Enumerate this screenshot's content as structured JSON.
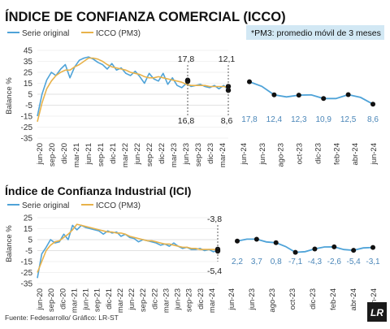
{
  "colors": {
    "series_original": "#4fa3d8",
    "series_pm3": "#e8b24a",
    "note_bg": "#d2e8f4",
    "text": "#222222",
    "value_text": "#4a86b8",
    "grid": "#d9d9d9"
  },
  "footer": {
    "source": "Fuente: Fedesarrollo/ Gráfico: LR-ST",
    "logo_text": "LR"
  },
  "chart_data": [
    {
      "type": "line",
      "title": "ÍNDICE DE CONFIANZA COMERCIAL (ICCO)",
      "note": "*PM3: promedio móvil de 3 meses",
      "ylabel": "Balance %",
      "legend": [
        "Serie original",
        "ICCO (PM3)"
      ],
      "legend_position": "top-left",
      "ylim": [
        -25,
        45
      ],
      "y_ticks": [
        "45",
        "35",
        "25",
        "15",
        "5",
        "-5",
        "-15",
        "-25",
        "-35"
      ],
      "x_ticks": [
        "jun-20",
        "sep-20",
        "dic-20",
        "mar-21",
        "jun-21",
        "sep-21",
        "dic-21",
        "mar-22",
        "jun-22",
        "sep-22",
        "dic-22",
        "mar-23",
        "jun-23",
        "sep-23",
        "dic-23",
        "mar-24"
      ],
      "series": [
        {
          "name": "Serie original",
          "values": [
            -15,
            5,
            18,
            25,
            22,
            28,
            32,
            20,
            30,
            36,
            38,
            39,
            37,
            34,
            32,
            28,
            33,
            27,
            29,
            24,
            22,
            26,
            21,
            15,
            24,
            19,
            17,
            24,
            14,
            20,
            13,
            11,
            15,
            12,
            13,
            14,
            12,
            11,
            13,
            10,
            13,
            9
          ]
        },
        {
          "name": "ICCO (PM3)",
          "values": [
            -20,
            -3,
            10,
            17,
            22,
            25,
            27,
            27,
            30,
            32,
            35,
            38,
            38,
            37,
            35,
            32,
            30,
            29,
            28,
            27,
            25,
            24,
            23,
            21,
            20,
            20,
            21,
            20,
            19,
            18,
            17,
            16,
            14,
            13,
            13,
            13,
            13,
            12,
            12,
            12,
            12,
            11
          ]
        }
      ],
      "highlight_points": [
        {
          "label": "17,8",
          "position": "above",
          "value": 17.8
        },
        {
          "label": "16,8",
          "position": "below",
          "value": 16.8
        },
        {
          "label": "12,1",
          "position": "above",
          "value": 12.1
        },
        {
          "label": "8,6",
          "position": "below",
          "value": 8.6
        }
      ],
      "zoom": {
        "x_ticks": [
          "jun-24",
          "jun-23",
          "ago-23",
          "oct-23",
          "dic-23",
          "feb-24",
          "abr-24",
          "jun-24"
        ],
        "values": [
          17.8,
          12.4,
          12.3,
          10.9,
          12.5,
          8.6
        ],
        "value_labels": [
          "17,8",
          "12,4",
          "12,3",
          "10,9",
          "12,5",
          "8,6"
        ]
      }
    },
    {
      "type": "line",
      "title": "Índice de Confianza Industrial (ICI)",
      "ylabel": "Balance %",
      "legend": [
        "Serie original",
        "ICCO (PM3)"
      ],
      "legend_position": "top-left",
      "ylim": [
        -35,
        25
      ],
      "y_ticks": [
        "25",
        "15",
        "5",
        "-5",
        "-15",
        "-25",
        "-35"
      ],
      "x_ticks": [
        "jun-20",
        "sep-20",
        "dic-20",
        "mar-21",
        "jun-21",
        "sep-21",
        "dic-21",
        "mar-22",
        "jun-22",
        "sep-22",
        "dic-22",
        "mar-23",
        "jun-23",
        "sep-23",
        "dic-23",
        "mar-24"
      ],
      "series": [
        {
          "name": "Serie original",
          "values": [
            -30,
            -8,
            -2,
            5,
            2,
            3,
            10,
            5,
            18,
            14,
            18,
            16,
            15,
            14,
            13,
            10,
            13,
            11,
            12,
            8,
            10,
            7,
            6,
            3,
            5,
            4,
            3,
            2,
            0,
            1,
            -1,
            2,
            -1,
            -3,
            -2,
            -4,
            -4,
            -3,
            -5,
            -4,
            -6,
            -5
          ]
        },
        {
          "name": "ICCO (PM3)",
          "values": [
            -25,
            -15,
            -5,
            0,
            3,
            4,
            7,
            10,
            14,
            19,
            18,
            17,
            16,
            15,
            14,
            13,
            12,
            12,
            11,
            11,
            10,
            8,
            7,
            6,
            5,
            4,
            4,
            3,
            2,
            1,
            1,
            0,
            -1,
            -2,
            -2,
            -3,
            -3,
            -4,
            -4,
            -4,
            -4,
            -4
          ]
        }
      ],
      "highlight_points": [
        {
          "label": "-3,8",
          "position": "above",
          "value": -3.8
        },
        {
          "label": "-5,4",
          "position": "below",
          "value": -5.4
        }
      ],
      "zoom": {
        "x_ticks": [
          "jun-24",
          "jun-23",
          "ago-23",
          "oct-23",
          "dic-23",
          "feb-24",
          "abr-24",
          "jun-24"
        ],
        "values": [
          2.2,
          3.7,
          0.8,
          -7.1,
          -4.3,
          -2.6,
          -5.4,
          -3.1
        ],
        "value_labels": [
          "2,2",
          "3,7",
          "0,8",
          "-7,1",
          "-4,3",
          "-2,6",
          "-5,4",
          "-3,1"
        ]
      }
    }
  ]
}
